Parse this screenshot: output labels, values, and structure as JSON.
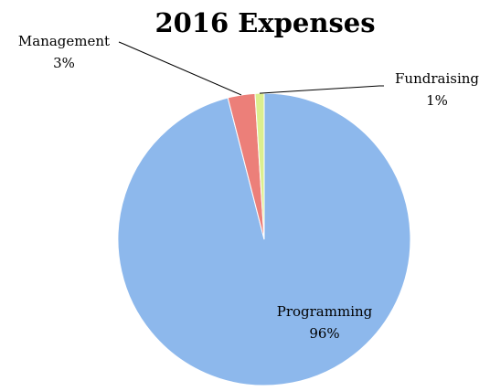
{
  "chart_data": {
    "type": "pie",
    "title": "2016 Expenses",
    "slices": [
      {
        "label": "Programming",
        "value": 96,
        "value_label": "96%",
        "color": "#8db8ec"
      },
      {
        "label": "Management",
        "value": 3,
        "value_label": "3%",
        "color": "#ec7f79"
      },
      {
        "label": "Fundraising",
        "value": 1,
        "value_label": "1%",
        "color": "#dcef8f"
      }
    ],
    "legend": "none",
    "label_placement": [
      "inside",
      "outside-left",
      "outside-right"
    ]
  }
}
